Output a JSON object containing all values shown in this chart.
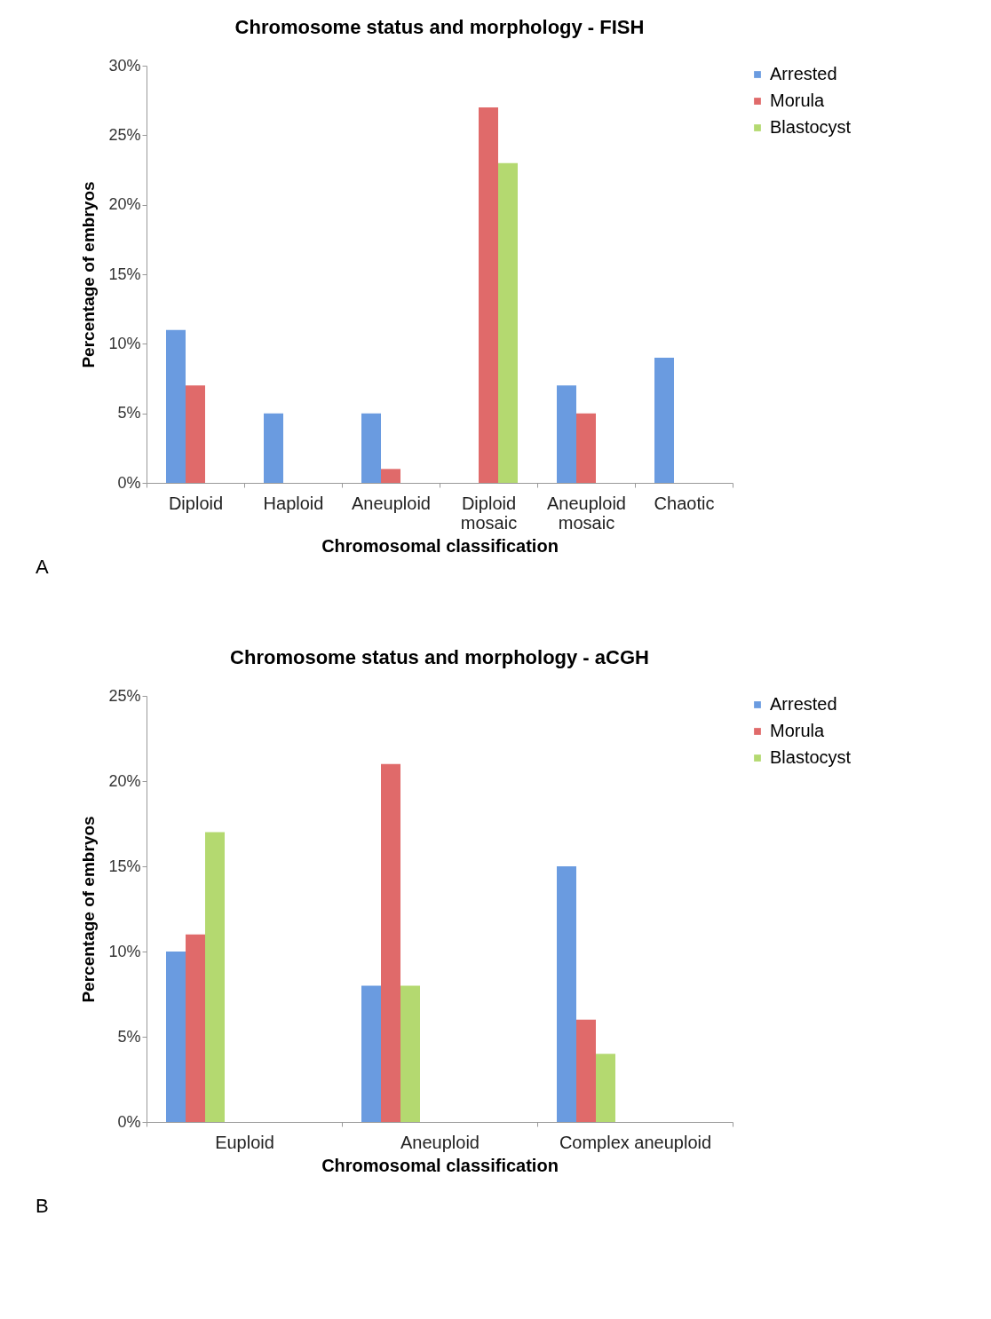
{
  "chart_data": [
    {
      "type": "bar",
      "title": "Chromosome status and morphology - FISH",
      "xlabel": "Chromosomal classification",
      "ylabel": "Percentage of embryos",
      "categories": [
        "Diploid",
        "Haploid",
        "Aneuploid",
        "Diploid\nmosaic",
        "Aneuploid\nmosaic",
        "Chaotic"
      ],
      "series": [
        {
          "name": "Arrested",
          "color": "#6a9be0",
          "values": [
            11,
            5,
            5,
            null,
            7,
            9
          ]
        },
        {
          "name": "Morula",
          "color": "#e06a6a",
          "values": [
            7,
            null,
            1,
            27,
            5,
            null
          ]
        },
        {
          "name": "Blastocyst",
          "color": "#b4d970",
          "values": [
            null,
            null,
            null,
            23,
            null,
            null
          ]
        }
      ],
      "ylim": [
        0,
        30
      ],
      "yticks": [
        {
          "value": 0,
          "label": "0%"
        },
        {
          "value": 5,
          "label": "5%"
        },
        {
          "value": 10,
          "label": "10%"
        },
        {
          "value": 15,
          "label": "15%"
        },
        {
          "value": 20,
          "label": "20%"
        },
        {
          "value": 25,
          "label": "25%"
        },
        {
          "value": 30,
          "label": "30%"
        }
      ],
      "grid": false,
      "legend": "right",
      "annotations": [
        "A"
      ]
    },
    {
      "type": "bar",
      "title": "Chromosome status and morphology - aCGH",
      "xlabel": "Chromosomal classification",
      "ylabel": "Percentage of embryos",
      "categories": [
        "Euploid",
        "Aneuploid",
        "Complex aneuploid"
      ],
      "series": [
        {
          "name": "Arrested",
          "color": "#6a9be0",
          "values": [
            10,
            8,
            15
          ]
        },
        {
          "name": "Morula",
          "color": "#e06a6a",
          "values": [
            11,
            21,
            6
          ]
        },
        {
          "name": "Blastocyst",
          "color": "#b4d970",
          "values": [
            17,
            8,
            4
          ]
        }
      ],
      "ylim": [
        0,
        25
      ],
      "yticks": [
        {
          "value": 0,
          "label": "0%"
        },
        {
          "value": 5,
          "label": "5%"
        },
        {
          "value": 10,
          "label": "10%"
        },
        {
          "value": 15,
          "label": "15%"
        },
        {
          "value": 20,
          "label": "20%"
        },
        {
          "value": 25,
          "label": "25%"
        }
      ],
      "grid": false,
      "legend": "right",
      "annotations": [
        "B"
      ]
    }
  ]
}
